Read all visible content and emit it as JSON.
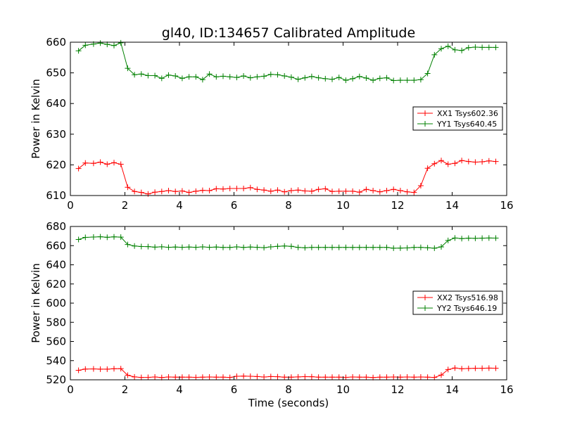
{
  "figure": {
    "title": "gl40, ID:134657 Calibrated Amplitude",
    "xlabel": "Time (seconds)"
  },
  "chart_data": [
    {
      "type": "line",
      "ylabel": "Power in Kelvin",
      "xlim": [
        0,
        16
      ],
      "ylim": [
        610,
        660
      ],
      "xticks": [
        0,
        2,
        4,
        6,
        8,
        10,
        12,
        14,
        16
      ],
      "yticks": [
        610,
        620,
        630,
        640,
        650,
        660
      ],
      "legend_position": "right",
      "grid": false,
      "marker": "+",
      "x": [
        0.3,
        0.55,
        0.85,
        1.1,
        1.35,
        1.6,
        1.85,
        2.1,
        2.35,
        2.6,
        2.85,
        3.1,
        3.35,
        3.6,
        3.85,
        4.1,
        4.35,
        4.6,
        4.85,
        5.1,
        5.35,
        5.6,
        5.85,
        6.1,
        6.35,
        6.6,
        6.85,
        7.1,
        7.35,
        7.6,
        7.85,
        8.1,
        8.35,
        8.6,
        8.85,
        9.1,
        9.35,
        9.6,
        9.85,
        10.1,
        10.35,
        10.6,
        10.85,
        11.1,
        11.35,
        11.6,
        11.85,
        12.1,
        12.35,
        12.6,
        12.85,
        13.1,
        13.35,
        13.6,
        13.85,
        14.1,
        14.35,
        14.6,
        14.85,
        15.1,
        15.35,
        15.6
      ],
      "series": [
        {
          "name": "XX1 Tsys602.36",
          "color": "#ff0000",
          "values": [
            618.8,
            620.6,
            620.5,
            620.9,
            620.2,
            620.7,
            620.2,
            612.7,
            611.3,
            611.0,
            610.5,
            611.1,
            611.3,
            611.6,
            611.3,
            611.5,
            611.0,
            611.4,
            611.7,
            611.6,
            612.2,
            612.1,
            612.3,
            612.3,
            612.3,
            612.6,
            612.0,
            611.8,
            611.4,
            611.8,
            611.2,
            611.6,
            611.8,
            611.5,
            611.4,
            612.0,
            612.2,
            611.3,
            611.4,
            611.4,
            611.4,
            611.1,
            612.0,
            611.6,
            611.2,
            611.6,
            612.0,
            611.6,
            611.2,
            611.0,
            613.2,
            618.9,
            620.4,
            621.4,
            620.2,
            620.5,
            621.4,
            621.1,
            620.9,
            621.0,
            621.3,
            621.1
          ],
          "x_override": [
            0.3,
            0.55,
            0.85,
            1.1,
            1.35,
            1.6,
            1.85,
            2.1,
            2.35,
            2.6,
            2.85,
            3.1,
            3.35,
            3.6,
            3.85,
            4.1,
            4.35,
            4.6,
            4.85,
            5.1,
            5.35,
            5.6,
            5.85,
            6.1,
            6.35,
            6.6,
            6.85,
            7.1,
            7.35,
            7.6,
            7.85,
            8.1,
            8.35,
            8.6,
            8.85,
            9.1,
            9.35,
            9.6,
            9.85,
            10.1,
            10.35,
            10.6,
            10.85,
            11.1,
            11.35,
            11.6,
            11.85,
            12.1,
            12.35,
            12.6,
            12.85,
            13.1,
            13.35,
            13.6,
            13.85,
            14.1,
            14.35,
            14.6,
            14.85,
            15.1,
            15.35,
            15.6
          ]
        },
        {
          "name": "YY1 Tsys640.45",
          "color": "#008000",
          "values": [
            657.2,
            659.0,
            659.4,
            659.7,
            659.3,
            658.9,
            659.8,
            651.5,
            649.4,
            649.6,
            649.1,
            649.1,
            648.2,
            649.3,
            649.0,
            648.2,
            648.7,
            648.7,
            647.8,
            649.6,
            648.7,
            648.9,
            648.7,
            648.5,
            649.0,
            648.4,
            648.7,
            648.9,
            649.5,
            649.4,
            649.0,
            648.6,
            647.9,
            648.4,
            648.8,
            648.4,
            648.1,
            647.9,
            648.5,
            647.6,
            648.1,
            648.8,
            648.3,
            647.6,
            648.2,
            648.4,
            647.5,
            647.6,
            647.6,
            647.6,
            647.8,
            649.8,
            655.9,
            657.9,
            658.7,
            657.5,
            657.3,
            658.2,
            658.4,
            658.3,
            658.3,
            658.3
          ]
        }
      ]
    },
    {
      "type": "line",
      "ylabel": "Power in Kelvin",
      "xlabel": "Time (seconds)",
      "xlim": [
        0,
        16
      ],
      "ylim": [
        520,
        680
      ],
      "xticks": [
        0,
        2,
        4,
        6,
        8,
        10,
        12,
        14,
        16
      ],
      "yticks": [
        520,
        540,
        560,
        580,
        600,
        620,
        640,
        660,
        680
      ],
      "legend_position": "right",
      "grid": false,
      "marker": "+",
      "x": [
        0.3,
        0.55,
        0.85,
        1.1,
        1.35,
        1.6,
        1.85,
        2.1,
        2.35,
        2.6,
        2.85,
        3.1,
        3.35,
        3.6,
        3.85,
        4.1,
        4.35,
        4.6,
        4.85,
        5.1,
        5.35,
        5.6,
        5.85,
        6.1,
        6.35,
        6.6,
        6.85,
        7.1,
        7.35,
        7.6,
        7.85,
        8.1,
        8.35,
        8.6,
        8.85,
        9.1,
        9.35,
        9.6,
        9.85,
        10.1,
        10.35,
        10.6,
        10.85,
        11.1,
        11.35,
        11.6,
        11.85,
        12.1,
        12.35,
        12.6,
        12.85,
        13.1,
        13.35,
        13.6,
        13.85,
        14.1,
        14.35,
        14.6,
        14.85,
        15.1,
        15.35,
        15.6
      ],
      "series": [
        {
          "name": "XX2 Tsys516.98",
          "color": "#ff0000",
          "values": [
            529.9,
            531.2,
            531.4,
            531.1,
            531.1,
            531.6,
            531.7,
            524.8,
            523.0,
            522.5,
            522.6,
            522.9,
            522.4,
            522.9,
            522.7,
            522.8,
            522.8,
            522.6,
            522.8,
            522.9,
            522.8,
            522.8,
            522.5,
            523.7,
            523.8,
            523.7,
            523.4,
            522.9,
            523.4,
            523.2,
            522.8,
            522.7,
            523.0,
            523.3,
            523.2,
            522.8,
            522.8,
            522.7,
            522.8,
            522.6,
            522.9,
            522.8,
            522.7,
            522.4,
            522.8,
            522.8,
            522.9,
            522.8,
            522.9,
            522.7,
            522.9,
            522.8,
            522.5,
            524.9,
            530.7,
            532.3,
            531.6,
            531.8,
            532.0,
            532.0,
            532.2,
            532.1
          ]
        },
        {
          "name": "YY2 Tsys646.19",
          "color": "#008000",
          "values": [
            666.4,
            668.6,
            669.0,
            669.3,
            668.7,
            669.2,
            668.9,
            661.2,
            659.6,
            659.1,
            659.0,
            658.4,
            658.8,
            658.3,
            658.6,
            658.3,
            658.5,
            658.3,
            658.7,
            658.3,
            658.6,
            658.2,
            658.2,
            658.7,
            658.1,
            658.5,
            658.3,
            657.9,
            658.7,
            659.3,
            659.6,
            659.2,
            658.2,
            657.8,
            658.2,
            658.2,
            658.2,
            658.2,
            658.2,
            658.2,
            658.2,
            658.2,
            658.2,
            658.2,
            658.2,
            658.2,
            657.3,
            657.5,
            657.6,
            658.2,
            658.2,
            657.8,
            657.3,
            658.7,
            665.4,
            668.0,
            667.4,
            667.8,
            667.6,
            667.8,
            668.0,
            667.9
          ]
        }
      ]
    }
  ]
}
